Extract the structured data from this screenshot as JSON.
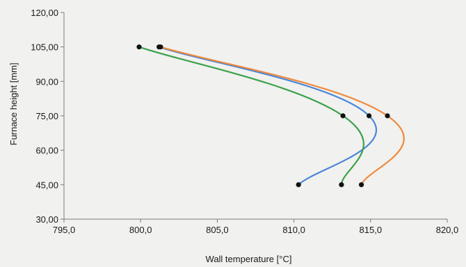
{
  "chart_data": {
    "type": "line",
    "xlabel": "Wall temperature [°C]",
    "ylabel": "Furnace height [mm]",
    "xlim": [
      795.0,
      820.0
    ],
    "ylim": [
      30.0,
      120.0
    ],
    "x_ticks": [
      795.0,
      800.0,
      805.0,
      810.0,
      815.0,
      820.0
    ],
    "x_tick_labels": [
      "795,0",
      "800,0",
      "805,0",
      "810,0",
      "815,0",
      "820,0"
    ],
    "y_ticks": [
      30.0,
      45.0,
      60.0,
      75.0,
      90.0,
      105.0,
      120.0
    ],
    "y_tick_labels": [
      "30,00",
      "45,00",
      "60,00",
      "75,00",
      "90,00",
      "105,00",
      "120,00"
    ],
    "grid": false,
    "smooth": true,
    "series": [
      {
        "color": "#4a86d8",
        "points": [
          {
            "x": 810.3,
            "y": 45.0
          },
          {
            "x": 814.9,
            "y": 75.0
          },
          {
            "x": 801.2,
            "y": 105.0
          }
        ]
      },
      {
        "color": "#f08a3c",
        "points": [
          {
            "x": 814.4,
            "y": 45.0
          },
          {
            "x": 816.1,
            "y": 75.0
          },
          {
            "x": 801.3,
            "y": 105.0
          }
        ]
      },
      {
        "color": "#3aa14a",
        "points": [
          {
            "x": 813.1,
            "y": 45.0
          },
          {
            "x": 813.2,
            "y": 75.0
          },
          {
            "x": 799.9,
            "y": 105.0
          }
        ]
      }
    ]
  }
}
